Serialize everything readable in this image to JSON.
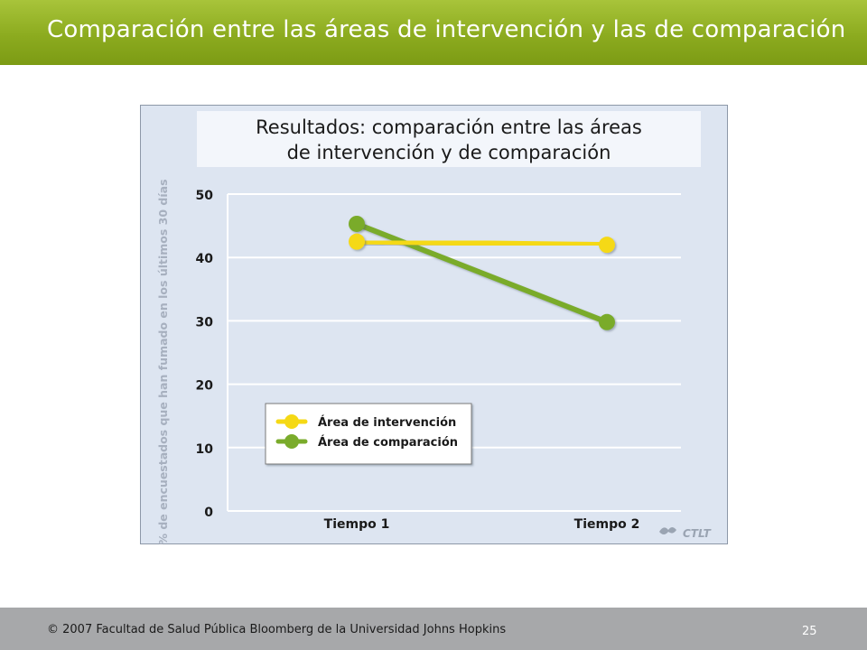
{
  "slide": {
    "title": "Comparación entre las áreas de intervención y las de comparación",
    "footer": "© 2007 Facultad de Salud Pública Bloomberg de la Universidad Johns Hopkins",
    "page_number": "25",
    "logo_text": "CTLT"
  },
  "colors": {
    "header": "#8cab1f",
    "intervention": "#f5d915",
    "comparison": "#7aab2b",
    "chart_background": "#dde5f1"
  },
  "chart_data": {
    "type": "line",
    "title_lines": [
      "Resultados: comparación entre las áreas",
      "de intervención y de comparación"
    ],
    "ylabel": "% de encuestados que han fumado en los últimos 30 días",
    "xlabel": "",
    "categories": [
      "Tiempo 1",
      "Tiempo 2"
    ],
    "ylim": [
      0,
      50
    ],
    "yticks": [
      0,
      10,
      20,
      30,
      40,
      50
    ],
    "grid": true,
    "legend_position": "bottom-left",
    "series": [
      {
        "name": "Área de intervención",
        "values": [
          42.5,
          42
        ],
        "color": "#f5d915"
      },
      {
        "name": "Área de comparación",
        "values": [
          45.3,
          29.8
        ],
        "color": "#7aab2b"
      }
    ]
  }
}
